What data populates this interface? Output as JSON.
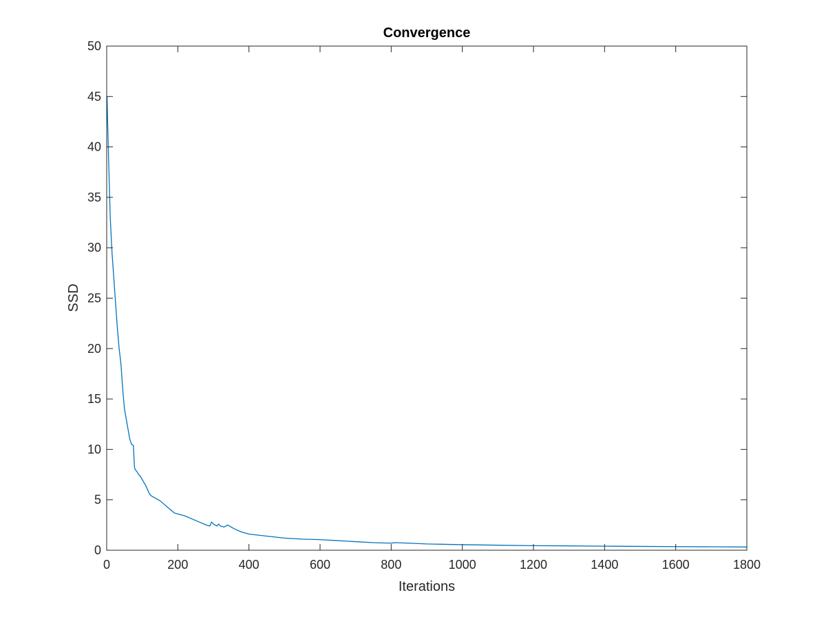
{
  "chart_data": {
    "type": "line",
    "title": "Convergence",
    "xlabel": "Iterations",
    "ylabel": "SSD",
    "xlim": [
      0,
      1800
    ],
    "ylim": [
      0,
      50
    ],
    "xticks": [
      0,
      200,
      400,
      600,
      800,
      1000,
      1200,
      1400,
      1600,
      1800
    ],
    "yticks": [
      0,
      5,
      10,
      15,
      20,
      25,
      30,
      35,
      40,
      45,
      50
    ],
    "grid": false,
    "box": true,
    "line_color": "#0072BD",
    "axis_color": "#262626",
    "series": [
      {
        "x": [
          1,
          3,
          6,
          10,
          15,
          20,
          25,
          30,
          35,
          40,
          45,
          50,
          55,
          60,
          65,
          70,
          75,
          78,
          80,
          85,
          90,
          95,
          100,
          105,
          110,
          115,
          120,
          125,
          130,
          140,
          150,
          160,
          170,
          180,
          190,
          200,
          220,
          240,
          260,
          280,
          290,
          295,
          300,
          310,
          315,
          320,
          330,
          340,
          345,
          350,
          360,
          380,
          400,
          450,
          500,
          550,
          600,
          650,
          700,
          750,
          800,
          810,
          850,
          900,
          1000,
          1100,
          1200,
          1300,
          1400,
          1500,
          1600,
          1700,
          1800
        ],
        "y": [
          45.0,
          42.0,
          38.0,
          33.0,
          29.5,
          27.0,
          24.5,
          22.0,
          20.0,
          18.5,
          16.0,
          14.0,
          13.0,
          12.0,
          11.0,
          10.5,
          10.4,
          8.3,
          8.0,
          7.8,
          7.5,
          7.3,
          7.0,
          6.7,
          6.4,
          6.0,
          5.6,
          5.4,
          5.3,
          5.1,
          4.9,
          4.6,
          4.3,
          4.0,
          3.7,
          3.6,
          3.4,
          3.1,
          2.8,
          2.5,
          2.4,
          2.8,
          2.6,
          2.4,
          2.6,
          2.4,
          2.3,
          2.5,
          2.4,
          2.3,
          2.1,
          1.8,
          1.6,
          1.4,
          1.2,
          1.1,
          1.05,
          0.95,
          0.85,
          0.75,
          0.7,
          0.75,
          0.7,
          0.62,
          0.55,
          0.5,
          0.45,
          0.43,
          0.4,
          0.38,
          0.36,
          0.34,
          0.32
        ]
      }
    ]
  }
}
